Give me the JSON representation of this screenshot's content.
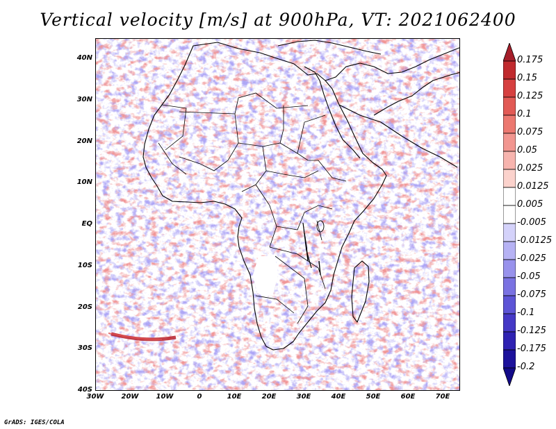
{
  "title": "Vertical velocity [m/s] at 900hPa, VT: 2021062400",
  "footer": "GrADS: IGES/COLA",
  "map": {
    "region": "Africa",
    "lon_range": [
      -30,
      75
    ],
    "lat_range": [
      -40,
      45
    ],
    "lat_labels": [
      "40N",
      "30N",
      "20N",
      "10N",
      "EQ",
      "10S",
      "20S",
      "30S",
      "40S"
    ],
    "lon_labels": [
      "30W",
      "20W",
      "10W",
      "0",
      "10E",
      "20E",
      "30E",
      "40E",
      "50E",
      "60E",
      "70E"
    ]
  },
  "colorbar": {
    "labels": [
      "0.175",
      "0.15",
      "0.125",
      "0.1",
      "0.075",
      "0.05",
      "0.025",
      "0.0125",
      "0.005",
      "-0.005",
      "-0.0125",
      "-0.025",
      "-0.05",
      "-0.075",
      "-0.1",
      "-0.125",
      "-0.175",
      "-0.2"
    ],
    "colors": [
      "#a51e2a",
      "#c02a2e",
      "#d64040",
      "#e25a55",
      "#ec7870",
      "#f29690",
      "#f7b4ae",
      "#fbd2cc",
      "#ffffff",
      "#ffffff",
      "#d4d2fa",
      "#b6b2f4",
      "#9892ec",
      "#7a72e2",
      "#5d54d6",
      "#4538c6",
      "#2f22b2",
      "#1d129c",
      "#120a88"
    ]
  }
}
